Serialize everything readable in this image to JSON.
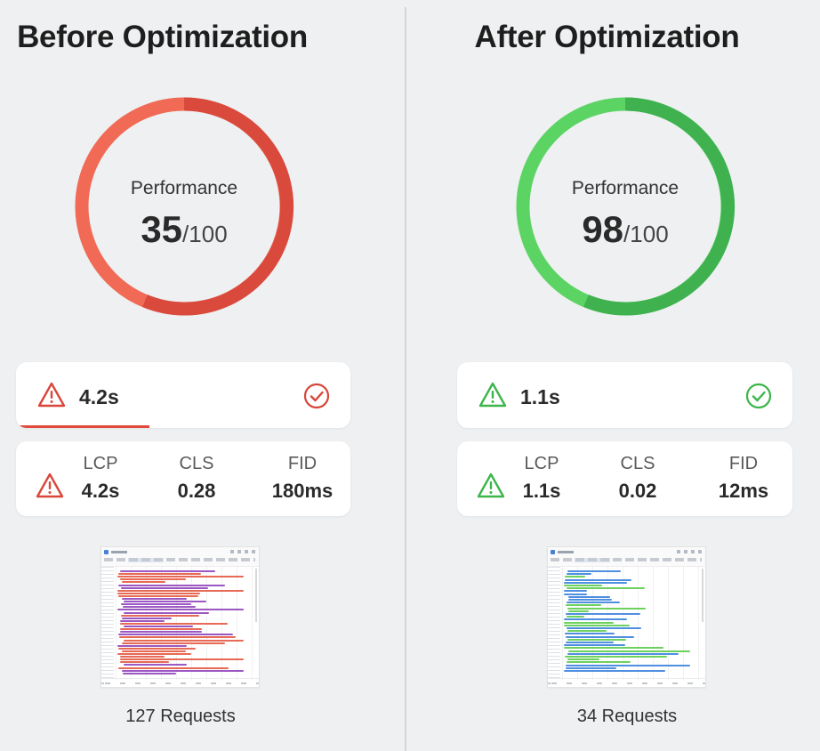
{
  "before": {
    "title": "Before Optimization",
    "gauge": {
      "label": "Performance",
      "score": "35",
      "max": "/100",
      "color": "#d94a3d",
      "color_light": "#f06a55",
      "score_value": 35
    },
    "summary": {
      "value": "4.2s",
      "status_icon": "warning-triangle-icon",
      "check_icon": "check-circle-icon",
      "accent": "#e0493c",
      "progress": 0.4
    },
    "metrics": [
      {
        "label": "LCP",
        "value": "4.2s"
      },
      {
        "label": "CLS",
        "value": "0.28"
      },
      {
        "label": "FID",
        "value": "180ms"
      }
    ],
    "waterfall": {
      "colors": [
        "#e66a55",
        "#9b57c2"
      ],
      "request_count": 127
    },
    "requests": "127 Requests"
  },
  "after": {
    "title": "After Optimization",
    "gauge": {
      "label": "Performance",
      "score": "98",
      "max": "/100",
      "color": "#3fb24f",
      "color_light": "#5cd464",
      "score_value": 98
    },
    "summary": {
      "value": "1.1s",
      "status_icon": "warning-triangle-icon",
      "check_icon": "check-circle-icon",
      "accent": "#3cb54a",
      "progress": 0
    },
    "metrics": [
      {
        "label": "LCP",
        "value": "1.1s"
      },
      {
        "label": "CLS",
        "value": "0.02"
      },
      {
        "label": "FID",
        "value": "12ms"
      }
    ],
    "waterfall": {
      "colors": [
        "#4f8fe0",
        "#6dd15f"
      ],
      "request_count": 34
    },
    "requests": "34 Requests"
  }
}
